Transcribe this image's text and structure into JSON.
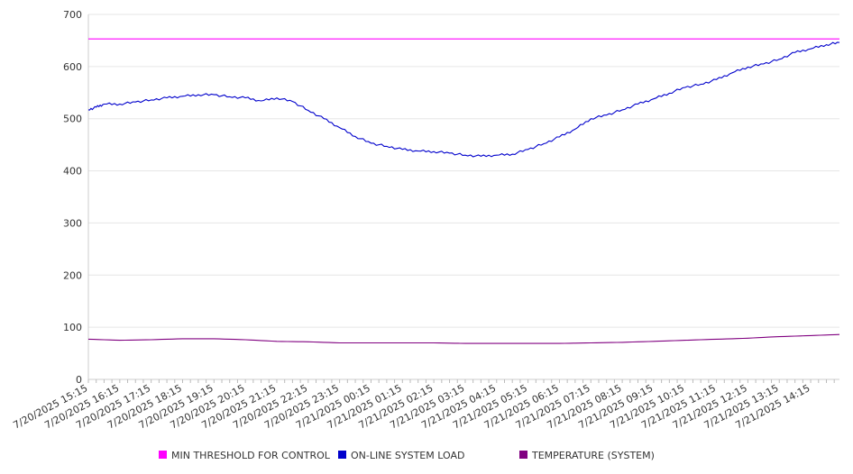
{
  "chart_data": {
    "type": "line",
    "x_axis": {
      "type": "datetime",
      "start": "7/20/2025 15:15",
      "end": "7/21/2025 15:10",
      "tick_labels": [
        "7/20/2025 15:15",
        "7/20/2025 16:15",
        "7/20/2025 17:15",
        "7/20/2025 18:15",
        "7/20/2025 19:15",
        "7/20/2025 20:15",
        "7/20/2025 21:15",
        "7/20/2025 22:15",
        "7/20/2025 23:15",
        "7/21/2025 00:15",
        "7/21/2025 01:15",
        "7/21/2025 02:15",
        "7/21/2025 03:15",
        "7/21/2025 04:15",
        "7/21/2025 05:15",
        "7/21/2025 06:15",
        "7/21/2025 07:15",
        "7/21/2025 08:15",
        "7/21/2025 09:15",
        "7/21/2025 10:15",
        "7/21/2025 11:15",
        "7/21/2025 12:15",
        "7/21/2025 13:15",
        "7/21/2025 14:15"
      ]
    },
    "y_axis": {
      "ylim": [
        0,
        700
      ],
      "ticks": [
        0,
        100,
        200,
        300,
        400,
        500,
        600,
        700
      ]
    },
    "grid": true,
    "legend_position": "bottom",
    "series": [
      {
        "name": "MIN THRESHOLD FOR CONTROL",
        "color": "#ff00ff",
        "x": [
          "7/20/2025 15:15",
          "7/21/2025 15:10"
        ],
        "y": [
          653,
          653
        ]
      },
      {
        "name": "ON-LINE SYSTEM LOAD",
        "color": "#0000cc",
        "x": [
          "7/20/2025 15:15",
          "7/20/2025 15:30",
          "7/20/2025 15:45",
          "7/20/2025 16:15",
          "7/20/2025 16:45",
          "7/20/2025 17:15",
          "7/20/2025 17:45",
          "7/20/2025 18:15",
          "7/20/2025 18:45",
          "7/20/2025 19:15",
          "7/20/2025 19:45",
          "7/20/2025 20:15",
          "7/20/2025 20:45",
          "7/20/2025 21:15",
          "7/20/2025 21:45",
          "7/20/2025 22:15",
          "7/20/2025 22:45",
          "7/20/2025 23:15",
          "7/20/2025 23:45",
          "7/21/2025 00:15",
          "7/21/2025 00:45",
          "7/21/2025 01:15",
          "7/21/2025 01:45",
          "7/21/2025 02:15",
          "7/21/2025 02:45",
          "7/21/2025 03:15",
          "7/21/2025 03:45",
          "7/21/2025 04:15",
          "7/21/2025 04:45",
          "7/21/2025 05:15",
          "7/21/2025 05:45",
          "7/21/2025 06:15",
          "7/21/2025 06:45",
          "7/21/2025 07:15",
          "7/21/2025 07:45",
          "7/21/2025 08:15",
          "7/21/2025 08:45",
          "7/21/2025 09:15",
          "7/21/2025 09:45",
          "7/21/2025 10:15",
          "7/21/2025 10:45",
          "7/21/2025 11:15",
          "7/21/2025 11:45",
          "7/21/2025 12:15",
          "7/21/2025 12:45",
          "7/21/2025 13:15",
          "7/21/2025 13:45",
          "7/21/2025 14:15",
          "7/21/2025 14:45",
          "7/21/2025 15:10"
        ],
        "y": [
          517,
          522,
          528,
          528,
          532,
          536,
          540,
          543,
          546,
          546,
          542,
          540,
          534,
          540,
          533,
          516,
          500,
          483,
          466,
          453,
          447,
          441,
          438,
          437,
          434,
          430,
          428,
          430,
          432,
          441,
          452,
          465,
          480,
          500,
          507,
          517,
          528,
          538,
          549,
          560,
          566,
          575,
          588,
          599,
          605,
          614,
          627,
          634,
          642,
          646
        ]
      },
      {
        "name": "TEMPERATURE (SYSTEM)",
        "color": "#800080",
        "x": [
          "7/20/2025 15:15",
          "7/20/2025 16:15",
          "7/20/2025 17:15",
          "7/20/2025 18:15",
          "7/20/2025 19:15",
          "7/20/2025 20:15",
          "7/20/2025 21:15",
          "7/20/2025 22:15",
          "7/20/2025 23:15",
          "7/21/2025 00:15",
          "7/21/2025 01:15",
          "7/21/2025 02:15",
          "7/21/2025 03:15",
          "7/21/2025 04:15",
          "7/21/2025 05:15",
          "7/21/2025 06:15",
          "7/21/2025 07:15",
          "7/21/2025 08:15",
          "7/21/2025 09:15",
          "7/21/2025 10:15",
          "7/21/2025 11:15",
          "7/21/2025 12:15",
          "7/21/2025 13:15",
          "7/21/2025 14:15",
          "7/21/2025 15:10"
        ],
        "y": [
          77,
          75,
          76,
          78,
          78,
          76,
          73,
          72,
          70,
          70,
          70,
          70,
          69,
          69,
          69,
          69,
          70,
          71,
          73,
          75,
          77,
          79,
          82,
          84,
          86
        ]
      }
    ]
  }
}
